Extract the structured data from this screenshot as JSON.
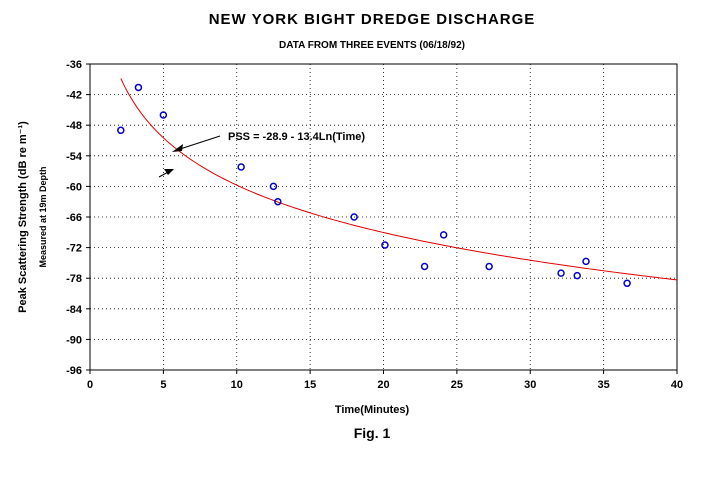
{
  "chart_data": {
    "type": "scatter",
    "title": "NEW YORK BIGHT DREDGE DISCHARGE",
    "subtitle": "DATA FROM THREE EVENTS  (06/18/92)",
    "xlabel": "Time(Minutes)",
    "ylabel": "Peak Scattering Strength (dB re m⁻¹)",
    "ylabel_secondary": "Measured at 19m Depth",
    "xlim": [
      0,
      40
    ],
    "ylim": [
      -96,
      -36
    ],
    "x_ticks": [
      0,
      5,
      10,
      15,
      20,
      25,
      30,
      35,
      40
    ],
    "y_ticks": [
      -36,
      -42,
      -48,
      -54,
      -60,
      -66,
      -72,
      -78,
      -84,
      -90,
      -96
    ],
    "grid": true,
    "series": [
      {
        "marker": "open-circle",
        "color": "#0000cc",
        "x": [
          2.1,
          3.3,
          5.0,
          10.3,
          12.5,
          12.8,
          18.0,
          20.1,
          22.8,
          24.1,
          27.2,
          32.1,
          33.2,
          33.8,
          36.6
        ],
        "y": [
          -49.0,
          -40.6,
          -46.0,
          -56.2,
          -60.0,
          -63.0,
          -66.0,
          -71.5,
          -75.7,
          -69.5,
          -75.7,
          -77.0,
          -77.5,
          -74.7,
          -79.0
        ]
      }
    ],
    "fit": {
      "equation": "PSS = -28.9 - 13.4Ln(Time)",
      "a": -28.9,
      "b": -13.4,
      "x_range": [
        2.1,
        40
      ],
      "color": "#e00000"
    },
    "annotation": "PSS = -28.9 - 13.4Ln(Time)",
    "figure_label": "Fig. 1"
  }
}
